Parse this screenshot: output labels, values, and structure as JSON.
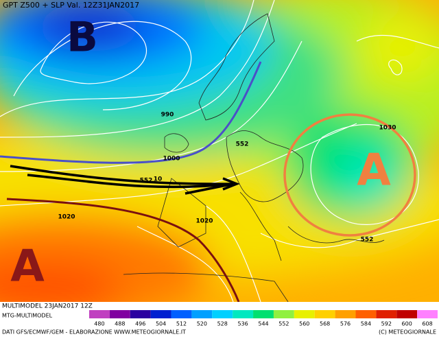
{
  "map": {
    "title": "GPT Z500 + SLP Val. 12Z31JAN2017",
    "pressure_centers": [
      "B",
      "A",
      "A"
    ],
    "contour_labels": [
      "990",
      "1000",
      "1030",
      "552",
      "552",
      "10",
      "1020",
      "1020",
      "552"
    ],
    "footer": {
      "model_run": "MULTIMODEL 23JAN2017 12Z",
      "source": "MTG-MULTIMODEL",
      "credits": "DATI GFS/ECMWF/GEM - ELABORAZIONE WWW.METEOGIORNALE.IT",
      "copyright": "(C) METEOGIORNALE"
    },
    "scale": [
      {
        "value": 480,
        "color": "#c040c0"
      },
      {
        "value": 488,
        "color": "#8000a0"
      },
      {
        "value": 496,
        "color": "#2a00a0"
      },
      {
        "value": 504,
        "color": "#0020d0"
      },
      {
        "value": 512,
        "color": "#0060ff"
      },
      {
        "value": 520,
        "color": "#00a0ff"
      },
      {
        "value": 528,
        "color": "#00d0ff"
      },
      {
        "value": 536,
        "color": "#00e8c0"
      },
      {
        "value": 544,
        "color": "#00e070"
      },
      {
        "value": 552,
        "color": "#90f040"
      },
      {
        "value": 560,
        "color": "#e8f000"
      },
      {
        "value": 568,
        "color": "#ffd000"
      },
      {
        "value": 576,
        "color": "#ffa000"
      },
      {
        "value": 584,
        "color": "#ff6000"
      },
      {
        "value": 592,
        "color": "#e02000"
      },
      {
        "value": 600,
        "color": "#c00000"
      },
      {
        "value": 608,
        "color": "#ff80ff"
      }
    ]
  }
}
